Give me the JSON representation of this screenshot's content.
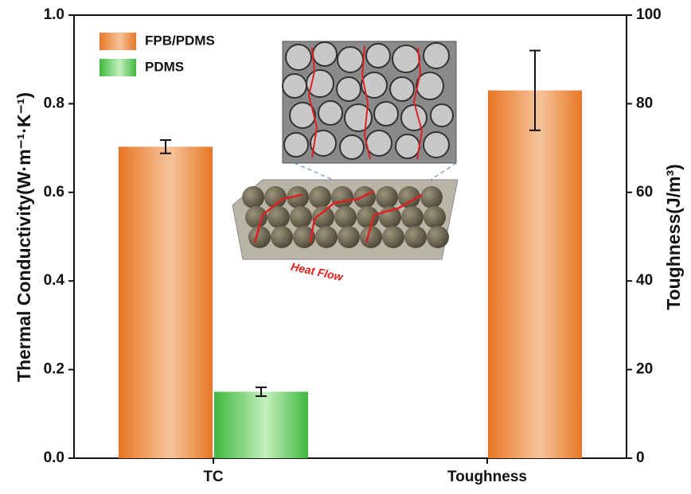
{
  "chart_data": {
    "type": "bar",
    "categories": [
      "TC",
      "Toughness"
    ],
    "series": [
      {
        "name": "FPB/PDMS",
        "color": "#ec8a45",
        "values": [
          0.703,
          null
        ],
        "errors": [
          0.015,
          null
        ],
        "axis": "y"
      },
      {
        "name": "PDMS",
        "color": "#6fcf6a",
        "values": [
          0.15,
          null
        ],
        "errors": [
          0.01,
          null
        ],
        "axis": "y"
      },
      {
        "color": "#ec8a45",
        "values": [
          null,
          83
        ],
        "errors": [
          null,
          9
        ],
        "axis": "y2"
      }
    ],
    "ylabel": "Thermal Conductivity(W·m⁻¹·K⁻¹)",
    "y2label": "Toughness(J/m³)",
    "ylim": [
      0,
      1.0
    ],
    "yticks": [
      {
        "value": 0,
        "label": "0.0"
      },
      0.2,
      0.4,
      0.6,
      0.8,
      {
        "value": 1,
        "label": "1.0"
      }
    ],
    "y2lim": [
      0,
      100
    ],
    "y2ticks": [
      0,
      20,
      40,
      60,
      80,
      100
    ],
    "annotations": [
      "Heat Flow"
    ],
    "legend": "upper-left"
  }
}
